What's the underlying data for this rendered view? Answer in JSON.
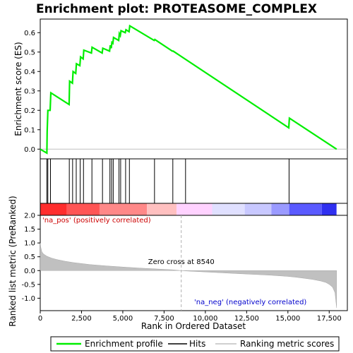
{
  "chart_data": {
    "type": "line",
    "title": "Enrichment plot: PROTEASOME_COMPLEX",
    "colors": {
      "enrichment_line": "#00ee00",
      "hits": "#000000",
      "ranked_fill": "#c0c0c0",
      "pos_label": "#cc0000",
      "neg_label": "#0000cc",
      "zero_cross_line": "#c0c0c0",
      "bar_gradient": [
        "#ff2d2d",
        "#ff5555",
        "#ff8888",
        "#ffc0c0",
        "#ffd2ff",
        "#e0e0ff",
        "#c8c8ff",
        "#9a9aff",
        "#5a5aff",
        "#3030f0",
        "#2200cc"
      ]
    },
    "top_panel": {
      "ylabel": "Enrichment score (ES)",
      "ylim": [
        -0.05,
        0.67
      ],
      "yticks": [
        0.0,
        0.1,
        0.2,
        0.3,
        0.4,
        0.5,
        0.6
      ],
      "ytick_labels": [
        "0.0",
        "0.1",
        "0.2",
        "0.3",
        "0.4",
        "0.5",
        "0.6"
      ],
      "series": [
        {
          "name": "Enrichment profile",
          "x": [
            0,
            400,
            420,
            460,
            600,
            640,
            1750,
            1780,
            1950,
            1990,
            2150,
            2190,
            2400,
            2440,
            2600,
            2640,
            3100,
            3140,
            3750,
            3790,
            4200,
            4240,
            4300,
            4340,
            4400,
            4440,
            4750,
            4790,
            4850,
            4890,
            5150,
            5190,
            5380,
            5420,
            6900,
            6940,
            8000,
            8050,
            15050,
            15090,
            17950
          ],
          "y": [
            0.0,
            -0.02,
            0.09,
            0.2,
            0.2,
            0.29,
            0.23,
            0.35,
            0.34,
            0.4,
            0.39,
            0.44,
            0.43,
            0.475,
            0.465,
            0.51,
            0.495,
            0.525,
            0.495,
            0.52,
            0.505,
            0.535,
            0.52,
            0.55,
            0.545,
            0.575,
            0.56,
            0.595,
            0.585,
            0.61,
            0.6,
            0.615,
            0.605,
            0.635,
            0.56,
            0.565,
            0.505,
            0.505,
            0.11,
            0.16,
            0.0
          ]
        }
      ]
    },
    "hits_panel": {
      "positions": [
        400,
        460,
        620,
        1760,
        1960,
        2180,
        2420,
        2620,
        3130,
        3770,
        4220,
        4320,
        4420,
        4770,
        4870,
        5170,
        5400,
        6920,
        8030,
        8800,
        15070
      ]
    },
    "bottom_panel": {
      "ylabel": "Ranked list metric (PreRanked)",
      "xlabel": "Rank in Ordered Dataset",
      "ylim": [
        -1.45,
        2.0
      ],
      "yticks": [
        -1.0,
        -0.5,
        0.0,
        0.5,
        1.0,
        1.5,
        2.0
      ],
      "ytick_labels": [
        "-1.0",
        "-0.5",
        "0.0",
        "0.5",
        "1.0",
        "1.5",
        "2.0"
      ],
      "xlim": [
        0,
        18600
      ],
      "xticks": [
        0,
        2500,
        5000,
        7500,
        10000,
        12500,
        15000,
        17500
      ],
      "xtick_labels": [
        "0",
        "2,500",
        "5,000",
        "7,500",
        "10,000",
        "12,500",
        "15,000",
        "17,500"
      ],
      "metric_x": [
        0,
        30,
        100,
        200,
        400,
        700,
        1000,
        1500,
        2000,
        3000,
        4000,
        5000,
        6000,
        7000,
        8000,
        8540,
        9000,
        10000,
        11000,
        12000,
        13000,
        14000,
        15000,
        15500,
        16000,
        16500,
        17000,
        17300,
        17500,
        17700,
        17850,
        17950
      ],
      "metric_y": [
        1.0,
        0.85,
        0.68,
        0.6,
        0.52,
        0.45,
        0.4,
        0.34,
        0.29,
        0.22,
        0.17,
        0.13,
        0.09,
        0.06,
        0.03,
        0.0,
        -0.02,
        -0.05,
        -0.08,
        -0.11,
        -0.14,
        -0.17,
        -0.21,
        -0.24,
        -0.28,
        -0.32,
        -0.38,
        -0.43,
        -0.5,
        -0.6,
        -0.8,
        -1.35
      ],
      "zero_cross_label": "Zero cross at 8540",
      "zero_cross_x": 8540,
      "pos_label": "'na_pos' (positively correlated)",
      "neg_label": "'na_neg' (negatively correlated)"
    },
    "legend": {
      "entries": [
        "Enrichment profile",
        "Hits",
        "Ranking metric scores"
      ]
    }
  }
}
